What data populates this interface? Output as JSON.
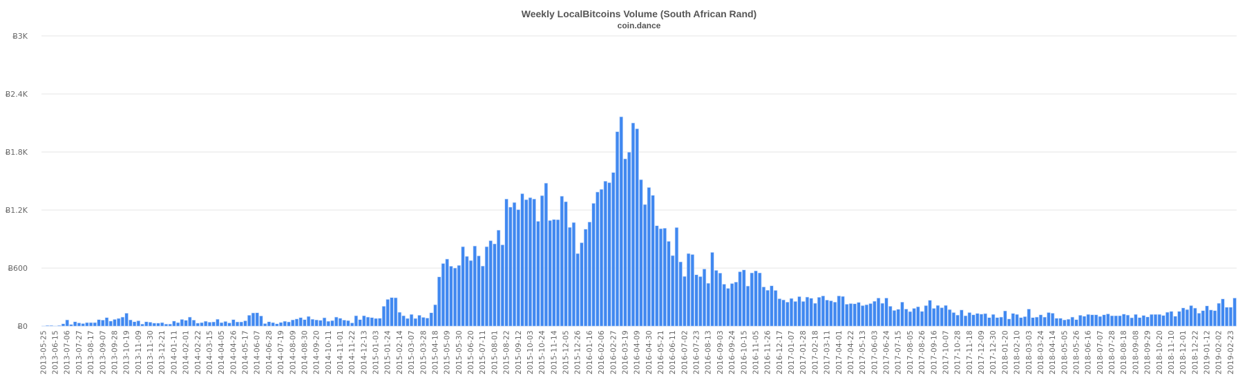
{
  "chart_data": {
    "type": "bar",
    "title": "Weekly LocalBitcoins Volume (South African Rand)",
    "subtitle": "coin.dance",
    "xlabel": "",
    "ylabel": "",
    "ylim": [
      0,
      3000
    ],
    "y_ticks": [
      0,
      600,
      1200,
      1800,
      2400,
      3000
    ],
    "y_tick_labels": [
      "Ƀ0",
      "Ƀ600",
      "Ƀ1.2K",
      "Ƀ1.8K",
      "Ƀ2.4K",
      "Ƀ3K"
    ],
    "grid": true,
    "legend": "none",
    "bar_color": "#4088f0",
    "x_interval": "weekly",
    "x_tick_every": 3,
    "x_tick_labels": [
      "2013-05-25",
      "2013-06-15",
      "2013-07-06",
      "2013-07-27",
      "2013-08-17",
      "2013-09-07",
      "2013-09-28",
      "2013-10-19",
      "2013-11-09",
      "2013-11-30",
      "2013-12-21",
      "2014-01-11",
      "2014-02-01",
      "2014-02-22",
      "2014-03-15",
      "2014-04-05",
      "2014-04-26",
      "2014-05-17",
      "2014-06-07",
      "2014-06-28",
      "2014-07-19",
      "2014-08-09",
      "2014-08-30",
      "2014-09-20",
      "2014-10-11",
      "2014-11-01",
      "2014-11-22",
      "2014-12-13",
      "2015-01-03",
      "2015-01-24",
      "2015-02-14",
      "2015-03-07",
      "2015-03-28",
      "2015-04-18",
      "2015-05-09",
      "2015-05-30",
      "2015-06-20",
      "2015-07-11",
      "2015-08-01",
      "2015-08-22",
      "2015-09-12",
      "2015-10-03",
      "2015-10-24",
      "2015-11-14",
      "2015-12-05",
      "2015-12-26",
      "2016-01-16",
      "2016-02-06",
      "2016-02-27",
      "2016-03-19",
      "2016-04-09",
      "2016-04-30",
      "2016-05-21",
      "2016-06-11",
      "2016-07-02",
      "2016-07-23",
      "2016-08-13",
      "2016-09-03",
      "2016-09-24",
      "2016-10-15",
      "2016-11-05",
      "2016-11-26",
      "2016-12-17",
      "2017-01-07",
      "2017-01-28",
      "2017-02-18",
      "2017-03-11",
      "2017-04-01",
      "2017-04-22",
      "2017-05-13",
      "2017-06-03",
      "2017-06-24",
      "2017-07-15",
      "2017-08-05",
      "2017-08-26",
      "2017-09-16",
      "2017-10-07",
      "2017-10-28",
      "2017-11-18",
      "2017-12-09",
      "2017-12-30",
      "2018-01-20",
      "2018-02-10",
      "2018-03-03",
      "2018-03-24",
      "2018-04-14",
      "2018-05-05",
      "2018-05-26",
      "2018-06-16",
      "2018-07-07",
      "2018-07-28",
      "2018-08-18",
      "2018-09-08",
      "2018-09-29",
      "2018-10-20",
      "2018-11-10",
      "2018-12-01",
      "2018-12-22",
      "2019-01-12",
      "2019-02-02",
      "2019-02-23"
    ],
    "values": [
      2,
      7,
      7,
      2,
      7,
      24,
      64,
      17,
      45,
      33,
      26,
      36,
      36,
      36,
      67,
      62,
      88,
      52,
      69,
      79,
      93,
      133,
      64,
      45,
      55,
      21,
      45,
      40,
      31,
      31,
      36,
      21,
      21,
      52,
      36,
      69,
      60,
      93,
      62,
      31,
      36,
      50,
      40,
      43,
      71,
      36,
      48,
      33,
      67,
      43,
      43,
      55,
      112,
      136,
      138,
      105,
      26,
      45,
      36,
      24,
      38,
      50,
      43,
      64,
      74,
      88,
      67,
      100,
      71,
      64,
      60,
      86,
      50,
      57,
      93,
      81,
      62,
      57,
      33,
      107,
      67,
      107,
      93,
      88,
      79,
      81,
      205,
      276,
      295,
      293,
      143,
      107,
      79,
      121,
      79,
      112,
      90,
      83,
      138,
      221,
      509,
      647,
      693,
      619,
      600,
      628,
      821,
      721,
      678,
      828,
      726,
      621,
      821,
      883,
      850,
      992,
      840,
      1314,
      1230,
      1278,
      1204,
      1369,
      1307,
      1328,
      1314,
      1083,
      1349,
      1478,
      1092,
      1102,
      1100,
      1343,
      1286,
      1021,
      1071,
      750,
      862,
      1002,
      1076,
      1269,
      1386,
      1414,
      1498,
      1483,
      1588,
      2010,
      2164,
      1729,
      1798,
      2100,
      2040,
      1514,
      1257,
      1433,
      1352,
      1038,
      1007,
      1012,
      876,
      729,
      1019,
      664,
      514,
      750,
      740,
      531,
      512,
      590,
      443,
      762,
      576,
      548,
      433,
      390,
      440,
      455,
      562,
      581,
      414,
      550,
      571,
      550,
      405,
      371,
      417,
      369,
      283,
      271,
      248,
      286,
      255,
      305,
      255,
      300,
      288,
      236,
      298,
      312,
      269,
      262,
      248,
      312,
      307,
      226,
      233,
      231,
      245,
      212,
      221,
      233,
      257,
      290,
      236,
      290,
      205,
      162,
      174,
      248,
      176,
      150,
      183,
      200,
      152,
      212,
      267,
      183,
      214,
      190,
      214,
      171,
      140,
      114,
      167,
      107,
      140,
      117,
      131,
      124,
      129,
      88,
      121,
      88,
      93,
      157,
      74,
      131,
      121,
      88,
      98,
      176,
      88,
      93,
      117,
      93,
      140,
      133,
      81,
      81,
      64,
      71,
      93,
      67,
      112,
      102,
      121,
      117,
      117,
      100,
      117,
      126,
      107,
      107,
      107,
      124,
      114,
      86,
      121,
      88,
      110,
      95,
      121,
      121,
      121,
      110,
      143,
      152,
      102,
      152,
      188,
      171,
      212,
      186,
      133,
      160,
      209,
      167,
      160,
      236,
      281,
      195,
      195,
      290
    ]
  }
}
